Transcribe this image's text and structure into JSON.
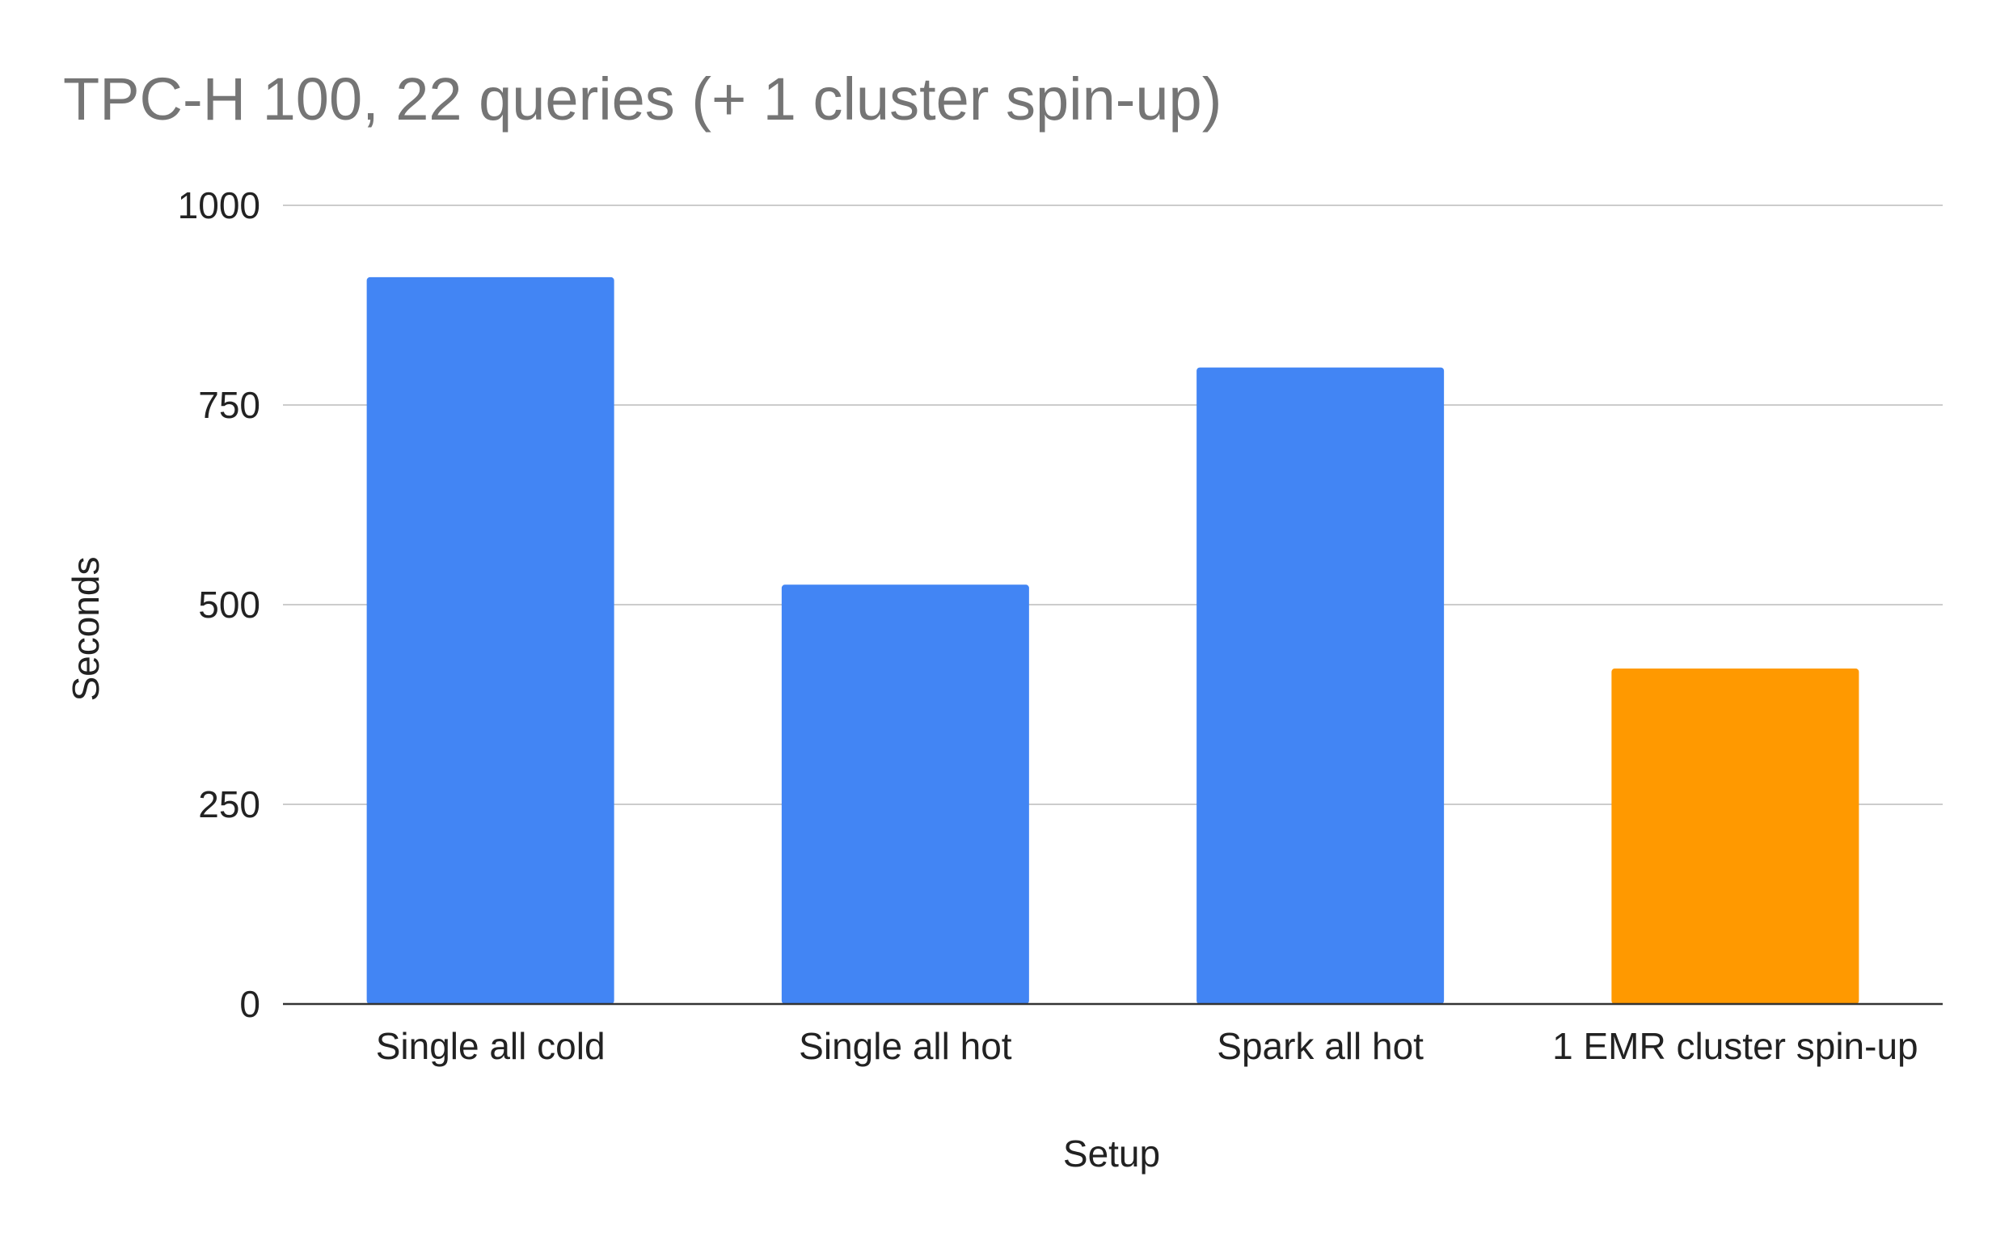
{
  "chart_data": {
    "type": "bar",
    "title": "TPC-H 100, 22 queries (+ 1 cluster spin-up)",
    "xlabel": "Setup",
    "ylabel": "Seconds",
    "categories": [
      "Single all cold",
      "Single all hot",
      "Spark all hot",
      "1 EMR cluster spin-up"
    ],
    "values": [
      910,
      525,
      797,
      420
    ],
    "colors": [
      "#4285f4",
      "#4285f4",
      "#4285f4",
      "#ff9900"
    ],
    "ylim": [
      0,
      1000
    ],
    "yticks": [
      "0",
      "250",
      "500",
      "750",
      "1000"
    ],
    "grid": true,
    "legend": "none"
  }
}
